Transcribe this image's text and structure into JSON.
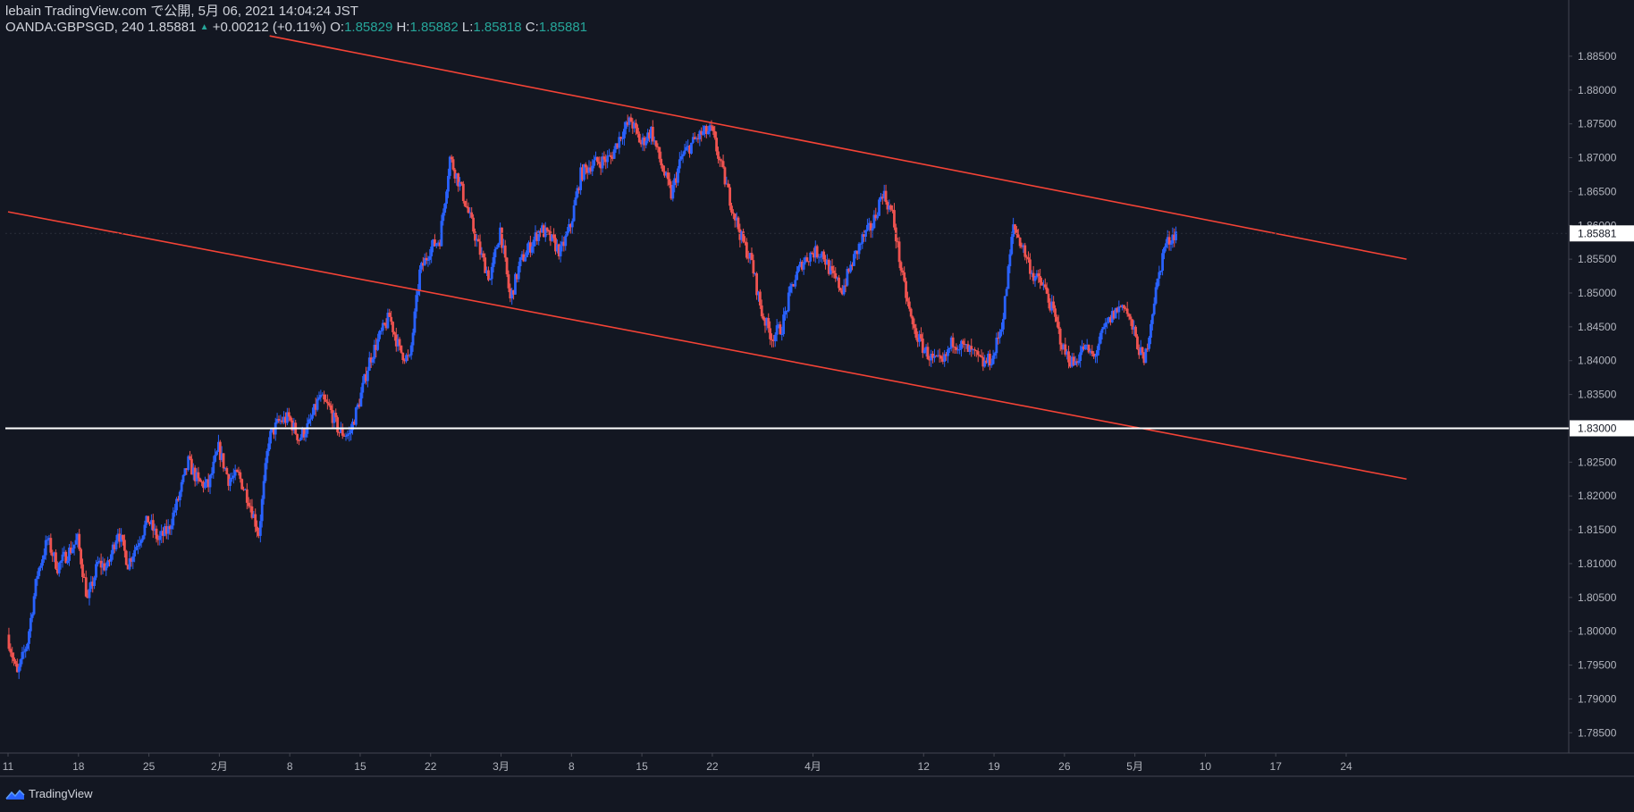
{
  "header": {
    "line1": "lebain TradingView.com で公開, 5月 06, 2021 14:04:24 JST",
    "symbol": "OANDA:GBPSGD, 240",
    "last": "1.85881",
    "change": "+0.00212 (+0.11%)",
    "o_label": "O:",
    "o_value": "1.85829",
    "h_label": "H:",
    "h_value": "1.85882",
    "l_label": "L:",
    "l_value": "1.85818",
    "c_label": "C:",
    "c_value": "1.85881"
  },
  "footer": {
    "brand": "TradingView",
    "logo_icon": "tradingview-logo-icon"
  },
  "colors": {
    "background": "#131722",
    "up": "#2962ff",
    "down": "#ef5350",
    "trendline": "#f44336",
    "level": "#ffffff",
    "axis_text": "#b2b5be",
    "border": "#434651"
  },
  "chart_data": {
    "type": "candlestick",
    "title": "",
    "symbol": "OANDA:GBPSGD",
    "interval": "240",
    "grid": false,
    "y_axis": {
      "position": "right",
      "range": [
        1.782,
        1.8875
      ],
      "ticks": [
        "1.88500",
        "1.88000",
        "1.87500",
        "1.87000",
        "1.86500",
        "1.86000",
        "1.85500",
        "1.85000",
        "1.84500",
        "1.84000",
        "1.83500",
        "1.83000",
        "1.82500",
        "1.82000",
        "1.81500",
        "1.81000",
        "1.80500",
        "1.80000",
        "1.79500",
        "1.79000",
        "1.78500"
      ],
      "last_price_label": "1.85881",
      "level_label": "1.83000"
    },
    "x_axis": {
      "ticks": [
        {
          "label": "11",
          "date": "2021-01-11"
        },
        {
          "label": "18",
          "date": "2021-01-18"
        },
        {
          "label": "25",
          "date": "2021-01-25"
        },
        {
          "label": "2月",
          "date": "2021-02-01"
        },
        {
          "label": "8",
          "date": "2021-02-08"
        },
        {
          "label": "15",
          "date": "2021-02-15"
        },
        {
          "label": "22",
          "date": "2021-02-22"
        },
        {
          "label": "3月",
          "date": "2021-03-01"
        },
        {
          "label": "8",
          "date": "2021-03-08"
        },
        {
          "label": "15",
          "date": "2021-03-15"
        },
        {
          "label": "22",
          "date": "2021-03-22"
        },
        {
          "label": "4月",
          "date": "2021-04-01"
        },
        {
          "label": "12",
          "date": "2021-04-12"
        },
        {
          "label": "19",
          "date": "2021-04-19"
        },
        {
          "label": "26",
          "date": "2021-04-26"
        },
        {
          "label": "5月",
          "date": "2021-05-03"
        },
        {
          "label": "10",
          "date": "2021-05-10"
        },
        {
          "label": "17",
          "date": "2021-05-17"
        },
        {
          "label": "24",
          "date": "2021-05-24"
        }
      ]
    },
    "price_path": [
      [
        "2021-01-11",
        1.7995
      ],
      [
        "2021-01-12",
        1.7935
      ],
      [
        "2021-01-13",
        1.7985
      ],
      [
        "2021-01-14",
        1.8085
      ],
      [
        "2021-01-15",
        1.8135
      ],
      [
        "2021-01-16",
        1.8095
      ],
      [
        "2021-01-18",
        1.8135
      ],
      [
        "2021-01-19",
        1.8045
      ],
      [
        "2021-01-20",
        1.81
      ],
      [
        "2021-01-21",
        1.8095
      ],
      [
        "2021-01-22",
        1.815
      ],
      [
        "2021-01-23",
        1.81
      ],
      [
        "2021-01-25",
        1.8165
      ],
      [
        "2021-01-26",
        1.8135
      ],
      [
        "2021-01-27",
        1.815
      ],
      [
        "2021-01-28",
        1.8195
      ],
      [
        "2021-01-29",
        1.825
      ],
      [
        "2021-01-30",
        1.822
      ],
      [
        "2021-01-31",
        1.8215
      ],
      [
        "2021-02-01",
        1.827
      ],
      [
        "2021-02-02",
        1.8225
      ],
      [
        "2021-02-03",
        1.823
      ],
      [
        "2021-02-04",
        1.8195
      ],
      [
        "2021-02-05",
        1.8145
      ],
      [
        "2021-02-06",
        1.8285
      ],
      [
        "2021-02-07",
        1.831
      ],
      [
        "2021-02-08",
        1.8315
      ],
      [
        "2021-02-09",
        1.8285
      ],
      [
        "2021-02-10",
        1.8305
      ],
      [
        "2021-02-11",
        1.8345
      ],
      [
        "2021-02-12",
        1.833
      ],
      [
        "2021-02-13",
        1.8295
      ],
      [
        "2021-02-14",
        1.829
      ],
      [
        "2021-02-15",
        1.834
      ],
      [
        "2021-02-16",
        1.84
      ],
      [
        "2021-02-17",
        1.8435
      ],
      [
        "2021-02-18",
        1.8465
      ],
      [
        "2021-02-19",
        1.8415
      ],
      [
        "2021-02-20",
        1.84
      ],
      [
        "2021-02-21",
        1.853
      ],
      [
        "2021-02-22",
        1.8565
      ],
      [
        "2021-02-23",
        1.858
      ],
      [
        "2021-02-24",
        1.87
      ],
      [
        "2021-02-25",
        1.866
      ],
      [
        "2021-02-26",
        1.861
      ],
      [
        "2021-02-27",
        1.856
      ],
      [
        "2021-02-28",
        1.852
      ],
      [
        "2021-03-01",
        1.8595
      ],
      [
        "2021-03-02",
        1.849
      ],
      [
        "2021-03-03",
        1.8545
      ],
      [
        "2021-03-04",
        1.857
      ],
      [
        "2021-03-05",
        1.8595
      ],
      [
        "2021-03-06",
        1.858
      ],
      [
        "2021-03-07",
        1.856
      ],
      [
        "2021-03-08",
        1.86
      ],
      [
        "2021-03-09",
        1.8675
      ],
      [
        "2021-03-10",
        1.869
      ],
      [
        "2021-03-11",
        1.8695
      ],
      [
        "2021-03-12",
        1.87
      ],
      [
        "2021-03-13",
        1.8735
      ],
      [
        "2021-03-14",
        1.8755
      ],
      [
        "2021-03-15",
        1.872
      ],
      [
        "2021-03-16",
        1.874
      ],
      [
        "2021-03-17",
        1.869
      ],
      [
        "2021-03-18",
        1.8645
      ],
      [
        "2021-03-19",
        1.87
      ],
      [
        "2021-03-20",
        1.872
      ],
      [
        "2021-03-21",
        1.8735
      ],
      [
        "2021-03-22",
        1.874
      ],
      [
        "2021-03-23",
        1.8685
      ],
      [
        "2021-03-24",
        1.863
      ],
      [
        "2021-03-25",
        1.858
      ],
      [
        "2021-03-26",
        1.8545
      ],
      [
        "2021-03-27",
        1.847
      ],
      [
        "2021-03-28",
        1.8435
      ],
      [
        "2021-03-29",
        1.845
      ],
      [
        "2021-03-30",
        1.851
      ],
      [
        "2021-03-31",
        1.8545
      ],
      [
        "2021-04-01",
        1.856
      ],
      [
        "2021-04-02",
        1.856
      ],
      [
        "2021-04-03",
        1.8525
      ],
      [
        "2021-04-04",
        1.8505
      ],
      [
        "2021-04-05",
        1.8545
      ],
      [
        "2021-04-06",
        1.858
      ],
      [
        "2021-04-07",
        1.86
      ],
      [
        "2021-04-08",
        1.865
      ],
      [
        "2021-04-09",
        1.8615
      ],
      [
        "2021-04-10",
        1.852
      ],
      [
        "2021-04-11",
        1.845
      ],
      [
        "2021-04-12",
        1.842
      ],
      [
        "2021-04-13",
        1.84
      ],
      [
        "2021-04-14",
        1.8395
      ],
      [
        "2021-04-15",
        1.843
      ],
      [
        "2021-04-16",
        1.842
      ],
      [
        "2021-04-17",
        1.841
      ],
      [
        "2021-04-18",
        1.8395
      ],
      [
        "2021-04-19",
        1.8405
      ],
      [
        "2021-04-20",
        1.8465
      ],
      [
        "2021-04-21",
        1.86
      ],
      [
        "2021-04-22",
        1.8565
      ],
      [
        "2021-04-23",
        1.8525
      ],
      [
        "2021-04-24",
        1.851
      ],
      [
        "2021-04-25",
        1.847
      ],
      [
        "2021-04-26",
        1.8415
      ],
      [
        "2021-04-27",
        1.8395
      ],
      [
        "2021-04-28",
        1.842
      ],
      [
        "2021-04-29",
        1.8405
      ],
      [
        "2021-04-30",
        1.8445
      ],
      [
        "2021-05-01",
        1.847
      ],
      [
        "2021-05-02",
        1.8485
      ],
      [
        "2021-05-03",
        1.844
      ],
      [
        "2021-05-04",
        1.8395
      ],
      [
        "2021-05-05",
        1.849
      ],
      [
        "2021-05-06",
        1.8568
      ],
      [
        "2021-05-07",
        1.8588
      ]
    ],
    "trendlines": [
      {
        "name": "upper-channel-line",
        "points": [
          [
            "2021-02-06",
            1.888
          ],
          [
            "2021-05-30",
            1.855
          ]
        ]
      },
      {
        "name": "lower-channel-line",
        "points": [
          [
            "2021-01-11",
            1.862
          ],
          [
            "2021-05-30",
            1.8225
          ]
        ]
      }
    ],
    "horizontal_levels": [
      1.83
    ],
    "last_price": 1.85881
  }
}
